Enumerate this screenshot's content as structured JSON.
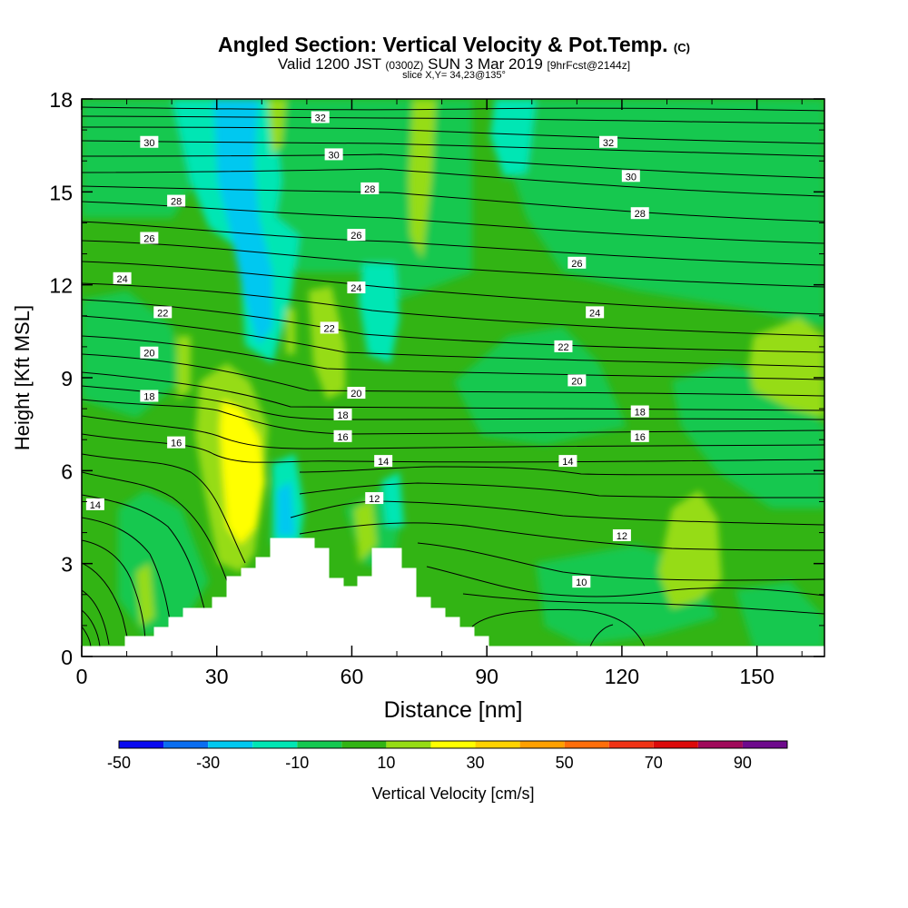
{
  "header": {
    "title": "Angled Section: Vertical Velocity & Pot.Temp.",
    "title_suffix": "(C)",
    "valid_a": "Valid 1200 JST",
    "valid_b": "(0300Z)",
    "valid_c": "SUN 3 Mar 2019",
    "valid_d": "[9hrFcst@2144z]",
    "slice": "slice X,Y= 34,23@135°"
  },
  "chart_data": {
    "type": "heatmap",
    "xlabel": "Distance [nm]",
    "ylabel": "Height [Kft MSL]",
    "xlim": [
      0,
      165
    ],
    "ylim": [
      0,
      18
    ],
    "x_ticks": [
      0,
      30,
      60,
      90,
      120,
      150
    ],
    "y_ticks": [
      0,
      3,
      6,
      9,
      12,
      15,
      18
    ],
    "grid": false,
    "colorbar": {
      "label": "Vertical Velocity [cm/s]",
      "position": "bottom",
      "bounds": [
        -50,
        -40,
        -30,
        -20,
        -10,
        0,
        10,
        20,
        30,
        40,
        50,
        60,
        70,
        80,
        90,
        100
      ],
      "tick_labels": [
        "-50",
        "-30",
        "-10",
        "10",
        "30",
        "50",
        "70",
        "90"
      ],
      "colors": [
        "#0a0af0",
        "#0a6ef0",
        "#00c8f0",
        "#00e6b4",
        "#14c850",
        "#32b414",
        "#96dc14",
        "#ffff00",
        "#ffd200",
        "#ffa000",
        "#ff6e0a",
        "#f03214",
        "#dc0a0a",
        "#a00a5a",
        "#6e0a8c"
      ]
    },
    "terrain_kft": {
      "x": [
        0,
        10,
        15,
        18,
        21,
        24,
        27,
        30,
        33,
        36,
        39,
        42,
        45,
        48,
        51,
        54,
        57,
        60,
        63,
        66,
        69,
        72,
        75,
        78,
        81,
        84,
        87,
        90,
        165
      ],
      "height": [
        0.3,
        0.6,
        0.6,
        0.9,
        1.2,
        1.5,
        1.5,
        1.8,
        2.6,
        2.9,
        3.2,
        3.8,
        3.8,
        3.8,
        3.5,
        3.0,
        2.6,
        2.3,
        2.6,
        3.5,
        3.5,
        2.9,
        1.8,
        1.5,
        1.2,
        0.9,
        0.6,
        0.3,
        0.3
      ]
    },
    "contour_labels": [
      {
        "x": 3,
        "y": 4.9,
        "text": "14"
      },
      {
        "x": 15,
        "y": 16.6,
        "text": "30"
      },
      {
        "x": 21,
        "y": 14.7,
        "text": "28"
      },
      {
        "x": 15,
        "y": 13.5,
        "text": "26"
      },
      {
        "x": 9,
        "y": 12.2,
        "text": "24"
      },
      {
        "x": 18,
        "y": 11.1,
        "text": "22"
      },
      {
        "x": 15,
        "y": 9.8,
        "text": "20"
      },
      {
        "x": 15,
        "y": 8.4,
        "text": "18"
      },
      {
        "x": 21,
        "y": 6.9,
        "text": "16"
      },
      {
        "x": 53,
        "y": 17.4,
        "text": "32"
      },
      {
        "x": 56,
        "y": 16.2,
        "text": "30"
      },
      {
        "x": 64,
        "y": 15.1,
        "text": "28"
      },
      {
        "x": 61,
        "y": 13.6,
        "text": "26"
      },
      {
        "x": 61,
        "y": 11.9,
        "text": "24"
      },
      {
        "x": 55,
        "y": 10.6,
        "text": "22"
      },
      {
        "x": 61,
        "y": 8.5,
        "text": "20"
      },
      {
        "x": 58,
        "y": 7.8,
        "text": "18"
      },
      {
        "x": 58,
        "y": 7.1,
        "text": "16"
      },
      {
        "x": 67,
        "y": 6.3,
        "text": "14"
      },
      {
        "x": 65,
        "y": 5.1,
        "text": "12"
      },
      {
        "x": 117,
        "y": 16.6,
        "text": "32"
      },
      {
        "x": 122,
        "y": 15.5,
        "text": "30"
      },
      {
        "x": 124,
        "y": 14.3,
        "text": "28"
      },
      {
        "x": 110,
        "y": 12.7,
        "text": "26"
      },
      {
        "x": 114,
        "y": 11.1,
        "text": "24"
      },
      {
        "x": 107,
        "y": 10.0,
        "text": "22"
      },
      {
        "x": 110,
        "y": 8.9,
        "text": "20"
      },
      {
        "x": 124,
        "y": 7.9,
        "text": "18"
      },
      {
        "x": 124,
        "y": 7.1,
        "text": "16"
      },
      {
        "x": 108,
        "y": 6.3,
        "text": "14"
      },
      {
        "x": 120,
        "y": 3.9,
        "text": "12"
      },
      {
        "x": 111,
        "y": 2.4,
        "text": "10"
      }
    ]
  }
}
